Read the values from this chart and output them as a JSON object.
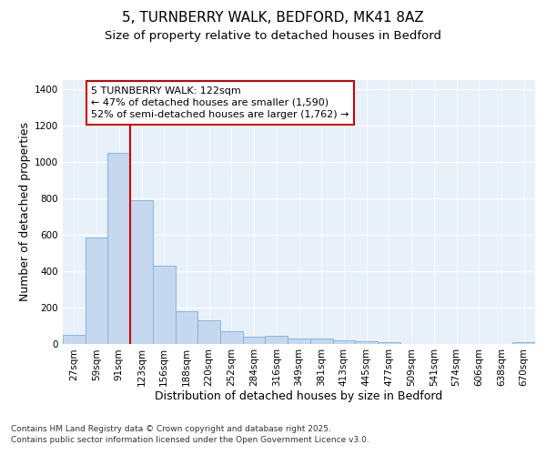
{
  "title1": "5, TURNBERRY WALK, BEDFORD, MK41 8AZ",
  "title2": "Size of property relative to detached houses in Bedford",
  "xlabel": "Distribution of detached houses by size in Bedford",
  "ylabel": "Number of detached properties",
  "categories": [
    "27sqm",
    "59sqm",
    "91sqm",
    "123sqm",
    "156sqm",
    "188sqm",
    "220sqm",
    "252sqm",
    "284sqm",
    "316sqm",
    "349sqm",
    "381sqm",
    "413sqm",
    "445sqm",
    "477sqm",
    "509sqm",
    "541sqm",
    "574sqm",
    "606sqm",
    "638sqm",
    "670sqm"
  ],
  "values": [
    50,
    585,
    1050,
    790,
    430,
    178,
    128,
    68,
    40,
    45,
    30,
    28,
    20,
    12,
    8,
    0,
    0,
    0,
    0,
    0,
    10
  ],
  "bar_color": "#c5d8f0",
  "bar_edge_color": "#7aafd4",
  "background_color": "#e8f0fa",
  "grid_color": "#ffffff",
  "vline_color": "#cc0000",
  "vline_x": 2.5,
  "annotation_line1": "5 TURNBERRY WALK: 122sqm",
  "annotation_line2": "← 47% of detached houses are smaller (1,590)",
  "annotation_line3": "52% of semi-detached houses are larger (1,762) →",
  "annotation_box_color": "#ffffff",
  "annotation_edge_color": "#cc0000",
  "ylim": [
    0,
    1450
  ],
  "yticks": [
    0,
    200,
    400,
    600,
    800,
    1000,
    1200,
    1400
  ],
  "footer": "Contains HM Land Registry data © Crown copyright and database right 2025.\nContains public sector information licensed under the Open Government Licence v3.0.",
  "title_fontsize": 11,
  "subtitle_fontsize": 9.5,
  "axis_label_fontsize": 9,
  "tick_fontsize": 7.5,
  "annotation_fontsize": 8,
  "footer_fontsize": 6.5
}
